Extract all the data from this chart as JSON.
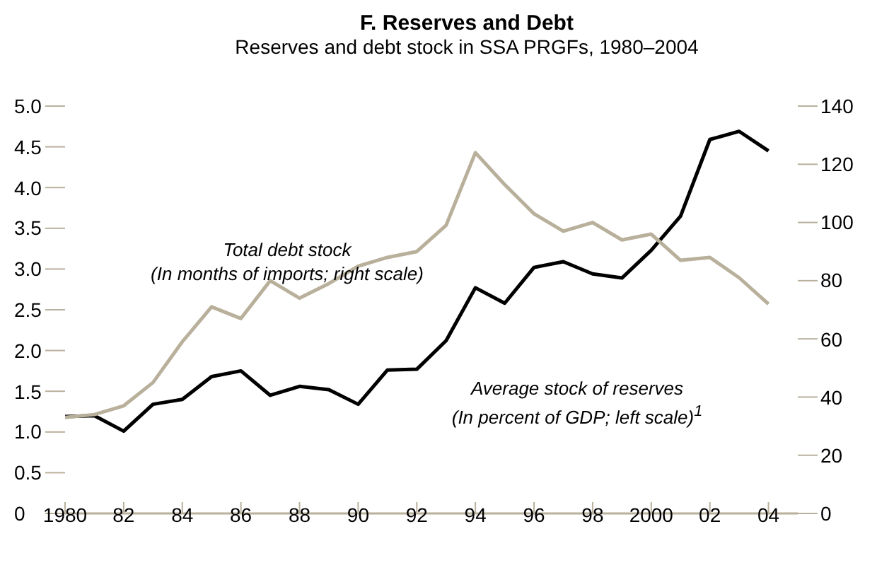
{
  "chart_data": {
    "type": "line",
    "title": "F. Reserves and Debt",
    "subtitle": "Reserves and debt stock in SSA PRGFs, 1980–2004",
    "x": [
      1980,
      1981,
      1982,
      1983,
      1984,
      1985,
      1986,
      1987,
      1988,
      1989,
      1990,
      1991,
      1992,
      1993,
      1994,
      1995,
      1996,
      1997,
      1998,
      1999,
      2000,
      2001,
      2002,
      2003,
      2004
    ],
    "series": [
      {
        "name": "Average stock of reserves (In percent of GDP; left scale)$^{1}$",
        "color": "#000000",
        "values": [
          1.19,
          1.2,
          1.01,
          1.34,
          1.4,
          1.68,
          1.75,
          1.45,
          1.56,
          1.52,
          1.34,
          1.76,
          1.77,
          2.12,
          2.77,
          2.58,
          3.02,
          3.09,
          2.94,
          2.89,
          3.23,
          3.65,
          4.59,
          4.69,
          4.45
        ]
      },
      {
        "name": "Total debt stock (In months of imports; right scale)",
        "color": "#b9b09c",
        "axis": "y2",
        "values": [
          33,
          34,
          37,
          45,
          59,
          71,
          67,
          80,
          74,
          79,
          85,
          88,
          90,
          99,
          124,
          113,
          103,
          97,
          100,
          94,
          96,
          87,
          88,
          81,
          72
        ]
      }
    ],
    "xlim": [
      1980,
      2005
    ],
    "xticks": [
      1980,
      {
        "value": 1982,
        "label": "82"
      },
      {
        "value": 1984,
        "label": "84"
      },
      {
        "value": 1986,
        "label": "86"
      },
      {
        "value": 1988,
        "label": "88"
      },
      {
        "value": 1990,
        "label": "90"
      },
      {
        "value": 1992,
        "label": "92"
      },
      {
        "value": 1994,
        "label": "94"
      },
      {
        "value": 1996,
        "label": "96"
      },
      {
        "value": 1998,
        "label": "98"
      },
      2000,
      {
        "value": 2002,
        "label": "02"
      },
      {
        "value": 2004,
        "label": "04"
      }
    ],
    "ylim": [
      0,
      5
    ],
    "yticks": [
      0,
      {
        "value": 0.5,
        "label": "0.5"
      },
      {
        "value": 1,
        "label": "1.0"
      },
      {
        "value": 1.5,
        "label": "1.5"
      },
      {
        "value": 2,
        "label": "2.0"
      },
      {
        "value": 2.5,
        "label": "2.5"
      },
      {
        "value": 3,
        "label": "3.0"
      },
      {
        "value": 3.5,
        "label": "3.5"
      },
      {
        "value": 4,
        "label": "4.0"
      },
      {
        "value": 4.5,
        "label": "4.5"
      },
      {
        "value": 5,
        "label": "5.0"
      }
    ],
    "y2lim": [
      0,
      140
    ],
    "y2ticks": [
      0,
      20,
      40,
      60,
      80,
      100,
      120,
      140
    ],
    "grid": false,
    "legend": false,
    "marker": "none",
    "line_style": "solid"
  }
}
